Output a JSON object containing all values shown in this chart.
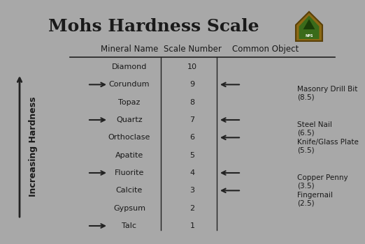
{
  "title": "Mohs Hardness Scale",
  "bg_color": "#a8a8a8",
  "col_headers": [
    "Mineral Name",
    "Scale Number",
    "Common Object"
  ],
  "minerals": [
    "Diamond",
    "Corundum",
    "Topaz",
    "Quartz",
    "Orthoclase",
    "Apatite",
    "Fluorite",
    "Calcite",
    "Gypsum",
    "Talc"
  ],
  "scale_numbers": [
    10,
    9,
    8,
    7,
    6,
    5,
    4,
    3,
    2,
    1
  ],
  "common_objects": [
    {
      "name": "Masonry Drill Bit\n(8.5)",
      "scale": 8.5
    },
    {
      "name": "Steel Nail\n(6.5)",
      "scale": 6.5
    },
    {
      "name": "Knife/Glass Plate\n(5.5)",
      "scale": 5.5
    },
    {
      "name": "Copper Penny\n(3.5)",
      "scale": 3.5
    },
    {
      "name": "Fingernail\n(2.5)",
      "scale": 2.5
    }
  ],
  "left_arrow_minerals": [
    "Corundum",
    "Quartz",
    "Fluorite",
    "Talc"
  ],
  "right_arrow_scales": [
    9.0,
    7.0,
    6.0,
    4.0,
    3.0
  ],
  "text_color": "#1a1a1a",
  "line_color": "#222222",
  "title_fontsize": 18,
  "header_fontsize": 8.5,
  "body_fontsize": 8,
  "obj_fontsize": 7.5,
  "ylabel_fontsize": 9
}
